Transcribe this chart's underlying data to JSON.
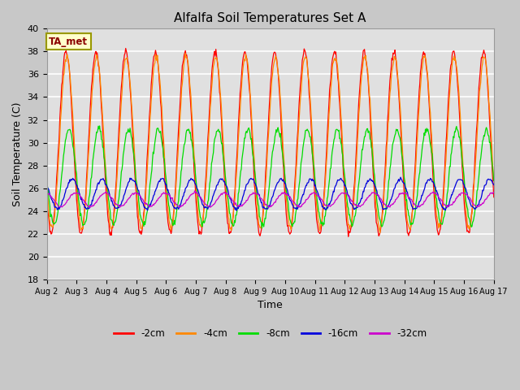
{
  "title": "Alfalfa Soil Temperatures Set A",
  "xlabel": "Time",
  "ylabel": "Soil Temperature (C)",
  "ylim": [
    18,
    40
  ],
  "yticks": [
    18,
    20,
    22,
    24,
    26,
    28,
    30,
    32,
    34,
    36,
    38,
    40
  ],
  "fig_bg_color": "#c8c8c8",
  "plot_bg_color": "#e0e0e0",
  "line_colors": {
    "-2cm": "#ff0000",
    "-4cm": "#ff8800",
    "-8cm": "#00dd00",
    "-16cm": "#0000dd",
    "-32cm": "#cc00cc"
  },
  "legend_label": "TA_met",
  "legend_box_color": "#ffffcc",
  "legend_box_edge": "#999900",
  "num_points": 720,
  "depths": [
    "-2cm",
    "-4cm",
    "-8cm",
    "-16cm",
    "-32cm"
  ]
}
